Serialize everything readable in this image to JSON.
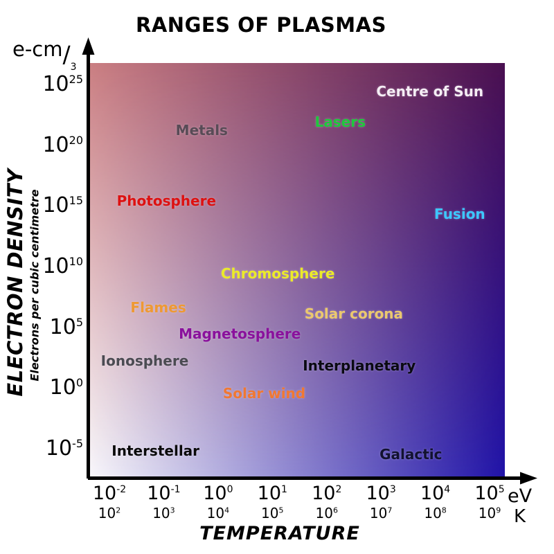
{
  "title": "RANGES OF PLASMAS",
  "y_axis": {
    "unit_base": "e-cm",
    "unit_slash": "/",
    "unit_exp": "3",
    "label": "ELECTRON DENSITY",
    "sublabel": "Electrons per cubic centimetre"
  },
  "x_axis": {
    "label": "TEMPERATURE",
    "ev_unit": "eV",
    "k_unit": "K"
  },
  "gradient": {
    "top_left": "#CA7E82",
    "top_right": "#4A1050",
    "bottom_left": "#F8F7FB",
    "bottom_right": "#2013A8"
  },
  "chart_data": {
    "type": "scatter",
    "title": "RANGES OF PLASMAS",
    "xlabel": "TEMPERATURE",
    "ylabel": "ELECTRON DENSITY",
    "y_sublabel": "Electrons per cubic centimetre",
    "x_scale": "log",
    "y_scale": "log",
    "x_units": [
      "eV",
      "K"
    ],
    "y_unit": "e-cm/3",
    "x_range_log10_eV": [
      -2,
      5
    ],
    "y_range_log10": [
      -5,
      25
    ],
    "x_ticks": [
      {
        "ev_exp": "-2",
        "k_exp": "2"
      },
      {
        "ev_exp": "-1",
        "k_exp": "3"
      },
      {
        "ev_exp": "0",
        "k_exp": "4"
      },
      {
        "ev_exp": "1",
        "k_exp": "5"
      },
      {
        "ev_exp": "2",
        "k_exp": "6"
      },
      {
        "ev_exp": "3",
        "k_exp": "7"
      },
      {
        "ev_exp": "4",
        "k_exp": "8"
      },
      {
        "ev_exp": "5",
        "k_exp": "9"
      }
    ],
    "y_tick_exps": [
      "25",
      "20",
      "15",
      "10",
      "5",
      "0",
      "-5"
    ],
    "points": [
      {
        "name": "Centre of Sun",
        "color": "#F5EEF5",
        "log10_T_eV": 3.9,
        "log10_density": 24.5
      },
      {
        "name": "Metals",
        "color": "#584B56",
        "log10_T_eV": -0.3,
        "log10_density": 21.3
      },
      {
        "name": "Lasers",
        "color": "#1EC83C",
        "log10_T_eV": 2.25,
        "log10_density": 22.0
      },
      {
        "name": "Photosphere",
        "color": "#DD1111",
        "log10_T_eV": -0.95,
        "log10_density": 15.5
      },
      {
        "name": "Fusion",
        "color": "#3CC8FF",
        "log10_T_eV": 4.45,
        "log10_density": 14.4
      },
      {
        "name": "Chromosphere",
        "color": "#EBEB28",
        "log10_T_eV": 1.1,
        "log10_density": 9.5
      },
      {
        "name": "Flames",
        "color": "#EE9933",
        "log10_T_eV": -1.1,
        "log10_density": 6.7
      },
      {
        "name": "Solar corona",
        "color": "#EBC86E",
        "log10_T_eV": 2.5,
        "log10_density": 6.2
      },
      {
        "name": "Magnetosphere",
        "color": "#8A119C",
        "log10_T_eV": 0.4,
        "log10_density": 4.5
      },
      {
        "name": "Ionosphere",
        "color": "#4B4B52",
        "log10_T_eV": -1.35,
        "log10_density": 2.3
      },
      {
        "name": "Interplanetary",
        "color": "#0A0A12",
        "log10_T_eV": 2.6,
        "log10_density": 1.9
      },
      {
        "name": "Solar wind",
        "color": "#F07832",
        "log10_T_eV": 0.85,
        "log10_density": -0.4
      },
      {
        "name": "Interstellar",
        "color": "#0A0A0A",
        "log10_T_eV": -1.15,
        "log10_density": -5.1
      },
      {
        "name": "Galactic",
        "color": "#121230",
        "log10_T_eV": 3.55,
        "log10_density": -5.4
      }
    ]
  }
}
